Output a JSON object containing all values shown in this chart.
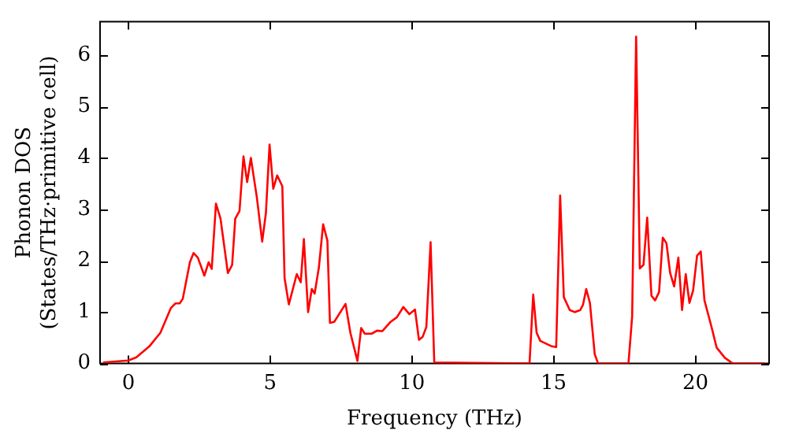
{
  "chart_data": {
    "type": "line",
    "xlabel": "Frequency (THz)",
    "ylabel": "Phonon DOS\n(States/THz·primitive cell)",
    "xlim": [
      -1,
      22.6
    ],
    "xticks": [
      0,
      5,
      10,
      15,
      20
    ],
    "ylim": [
      0,
      6.65
    ],
    "yticks": [
      0,
      1,
      2,
      3,
      4,
      5,
      6
    ],
    "grid": false,
    "legend": false,
    "marker": "none",
    "line_style": "solid",
    "series": [
      {
        "color": "#ff0000",
        "x": [
          -0.89,
          0,
          0.28,
          0.75,
          1.13,
          1.5,
          1.66,
          1.81,
          1.92,
          2.17,
          2.3,
          2.45,
          2.68,
          2.83,
          2.94,
          3.09,
          3.25,
          3.51,
          3.66,
          3.77,
          3.92,
          4.06,
          4.19,
          4.32,
          4.53,
          4.72,
          4.85,
          4.98,
          5.11,
          5.25,
          5.43,
          5.51,
          5.66,
          5.94,
          6.08,
          6.19,
          6.34,
          6.47,
          6.57,
          6.72,
          6.87,
          7.02,
          7.11,
          7.26,
          7.66,
          7.83,
          8.08,
          8.21,
          8.34,
          8.58,
          8.77,
          8.96,
          9.25,
          9.47,
          9.7,
          9.91,
          10.11,
          10.25,
          10.38,
          10.51,
          10.66,
          10.79,
          14.15,
          14.28,
          14.4,
          14.53,
          14.72,
          14.91,
          15.09,
          15.23,
          15.36,
          15.57,
          15.75,
          15.94,
          16.04,
          16.15,
          16.28,
          16.45,
          16.57,
          17.64,
          17.77,
          17.91,
          18.04,
          18.17,
          18.3,
          18.45,
          18.58,
          18.72,
          18.85,
          18.98,
          19.11,
          19.25,
          19.4,
          19.53,
          19.66,
          19.79,
          19.92,
          20.06,
          20.19,
          20.32,
          20.57,
          20.75,
          21.04,
          21.32,
          22.45
        ],
        "values": [
          0.02,
          0.06,
          0.12,
          0.34,
          0.6,
          1.08,
          1.17,
          1.17,
          1.26,
          1.97,
          2.15,
          2.06,
          1.71,
          1.97,
          1.84,
          3.11,
          2.82,
          1.76,
          1.92,
          2.82,
          2.97,
          4.03,
          3.53,
          4.0,
          3.24,
          2.37,
          2.92,
          4.26,
          3.4,
          3.66,
          3.45,
          1.66,
          1.15,
          1.74,
          1.58,
          2.42,
          1.0,
          1.45,
          1.36,
          1.87,
          2.71,
          2.39,
          0.79,
          0.81,
          1.16,
          0.6,
          0.05,
          0.69,
          0.58,
          0.58,
          0.64,
          0.63,
          0.81,
          0.9,
          1.1,
          0.96,
          1.05,
          0.46,
          0.52,
          0.71,
          2.36,
          0.02,
          0,
          1.34,
          0.6,
          0.44,
          0.39,
          0.34,
          0.32,
          3.27,
          1.29,
          1.04,
          1.0,
          1.04,
          1.15,
          1.45,
          1.18,
          0.18,
          0,
          0,
          0.92,
          6.36,
          1.85,
          1.92,
          2.84,
          1.32,
          1.23,
          1.39,
          2.45,
          2.34,
          1.76,
          1.5,
          2.06,
          1.04,
          1.74,
          1.18,
          1.42,
          2.1,
          2.18,
          1.23,
          0.71,
          0.31,
          0.11,
          0,
          0
        ]
      }
    ]
  }
}
